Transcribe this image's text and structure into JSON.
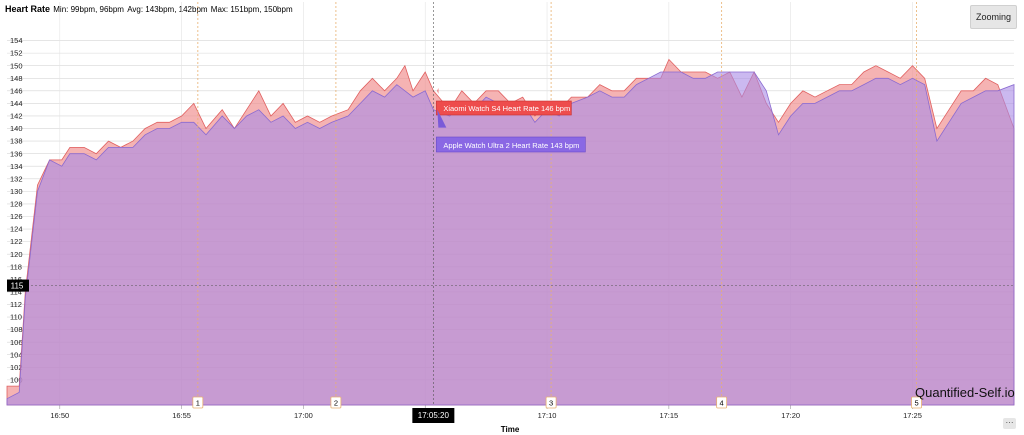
{
  "header": {
    "title": "Heart Rate",
    "min": "Min: 99bpm, 96bpm",
    "avg": "Avg: 143bpm, 142bpm",
    "max": "Max: 151bpm, 150bpm"
  },
  "toolbar": {
    "zoom_label": "Zooming",
    "more_label": "···"
  },
  "brand": "Quantified-Self.io",
  "crosshair": {
    "y_label": "115",
    "x_label": "17:05:20"
  },
  "tooltips": {
    "xiaomi": "Xiaomi Watch S4 Heart Rate 146 bpm",
    "apple": "Apple Watch Ultra 2 Heart Rate 143 bpm"
  },
  "colors": {
    "xiaomi": "#f08a8a",
    "apple": "#a88ae6",
    "overlap": "#d898c8"
  },
  "chart_data": {
    "type": "area",
    "xlabel": "Time",
    "ylabel": "",
    "ylim": [
      96,
      156
    ],
    "y_ticks": [
      100,
      102,
      104,
      106,
      108,
      110,
      112,
      114,
      116,
      118,
      120,
      122,
      124,
      126,
      128,
      130,
      132,
      134,
      136,
      138,
      140,
      142,
      144,
      146,
      148,
      150,
      152,
      154
    ],
    "x_ticks": [
      "16:50",
      "16:55",
      "17:00",
      "17:05",
      "17:10",
      "17:15",
      "17:20",
      "17:25"
    ],
    "x_range": [
      "16:47:50",
      "17:29:10"
    ],
    "markers": [
      {
        "label": "1",
        "time": "16:55:40"
      },
      {
        "label": "2",
        "time": "17:01:20"
      },
      {
        "label": "3",
        "time": "17:10:10"
      },
      {
        "label": "4",
        "time": "17:17:10"
      },
      {
        "label": "5",
        "time": "17:25:10"
      }
    ],
    "series": [
      {
        "name": "Xiaomi Watch S4 Heart Rate",
        "unit": "bpm",
        "points": [
          [
            "16:47:50",
            99
          ],
          [
            "16:48:20",
            99
          ],
          [
            "16:48:35",
            114
          ],
          [
            "16:49:05",
            131
          ],
          [
            "16:49:35",
            135
          ],
          [
            "16:50:05",
            135
          ],
          [
            "16:50:25",
            137
          ],
          [
            "16:51:00",
            137
          ],
          [
            "16:51:30",
            136
          ],
          [
            "16:52:00",
            138
          ],
          [
            "16:52:30",
            137
          ],
          [
            "16:53:00",
            138
          ],
          [
            "16:53:30",
            140
          ],
          [
            "16:54:00",
            141
          ],
          [
            "16:54:30",
            141
          ],
          [
            "16:55:00",
            142
          ],
          [
            "16:55:30",
            144
          ],
          [
            "16:56:00",
            140
          ],
          [
            "16:56:40",
            143
          ],
          [
            "16:57:10",
            140
          ],
          [
            "16:57:40",
            143
          ],
          [
            "16:58:10",
            146
          ],
          [
            "16:58:40",
            142
          ],
          [
            "16:59:10",
            144
          ],
          [
            "16:59:40",
            141
          ],
          [
            "17:00:10",
            142
          ],
          [
            "17:00:40",
            141
          ],
          [
            "17:01:10",
            142
          ],
          [
            "17:01:50",
            143
          ],
          [
            "17:02:20",
            146
          ],
          [
            "17:02:50",
            148
          ],
          [
            "17:03:20",
            146
          ],
          [
            "17:03:50",
            148
          ],
          [
            "17:04:10",
            150
          ],
          [
            "17:04:30",
            146
          ],
          [
            "17:05:00",
            149
          ],
          [
            "17:05:20",
            146
          ],
          [
            "17:06:00",
            143
          ],
          [
            "17:06:30",
            146
          ],
          [
            "17:07:00",
            144
          ],
          [
            "17:07:30",
            146
          ],
          [
            "17:08:00",
            146
          ],
          [
            "17:08:30",
            144
          ],
          [
            "17:09:00",
            145
          ],
          [
            "17:09:30",
            142
          ],
          [
            "17:10:00",
            144
          ],
          [
            "17:10:30",
            143
          ],
          [
            "17:11:00",
            145
          ],
          [
            "17:11:40",
            145
          ],
          [
            "17:12:10",
            147
          ],
          [
            "17:12:40",
            146
          ],
          [
            "17:13:10",
            146
          ],
          [
            "17:13:40",
            148
          ],
          [
            "17:14:10",
            148
          ],
          [
            "17:14:40",
            148
          ],
          [
            "17:15:00",
            151
          ],
          [
            "17:15:30",
            149
          ],
          [
            "17:16:00",
            149
          ],
          [
            "17:16:30",
            149
          ],
          [
            "17:17:00",
            148
          ],
          [
            "17:17:30",
            149
          ],
          [
            "17:18:00",
            145
          ],
          [
            "17:18:30",
            149
          ],
          [
            "17:19:00",
            144
          ],
          [
            "17:19:30",
            141
          ],
          [
            "17:20:00",
            144
          ],
          [
            "17:20:30",
            146
          ],
          [
            "17:21:00",
            145
          ],
          [
            "17:21:30",
            146
          ],
          [
            "17:22:00",
            147
          ],
          [
            "17:22:30",
            147
          ],
          [
            "17:23:00",
            149
          ],
          [
            "17:23:30",
            150
          ],
          [
            "17:24:00",
            149
          ],
          [
            "17:24:30",
            148
          ],
          [
            "17:25:00",
            150
          ],
          [
            "17:25:30",
            148
          ],
          [
            "17:26:00",
            140
          ],
          [
            "17:26:30",
            143
          ],
          [
            "17:27:00",
            146
          ],
          [
            "17:27:30",
            146
          ],
          [
            "17:28:00",
            148
          ],
          [
            "17:28:30",
            147
          ],
          [
            "17:29:10",
            140
          ]
        ]
      },
      {
        "name": "Apple Watch Ultra 2 Heart Rate",
        "unit": "bpm",
        "points": [
          [
            "16:47:50",
            97
          ],
          [
            "16:48:20",
            98
          ],
          [
            "16:48:35",
            113
          ],
          [
            "16:49:05",
            130
          ],
          [
            "16:49:35",
            135
          ],
          [
            "16:50:05",
            134
          ],
          [
            "16:50:25",
            136
          ],
          [
            "16:51:00",
            136
          ],
          [
            "16:51:30",
            135
          ],
          [
            "16:52:00",
            137
          ],
          [
            "16:52:30",
            137
          ],
          [
            "16:53:00",
            137
          ],
          [
            "16:53:30",
            139
          ],
          [
            "16:54:00",
            140
          ],
          [
            "16:54:30",
            140
          ],
          [
            "16:55:00",
            141
          ],
          [
            "16:55:30",
            141
          ],
          [
            "16:56:00",
            139
          ],
          [
            "16:56:40",
            142
          ],
          [
            "16:57:10",
            140
          ],
          [
            "16:57:40",
            142
          ],
          [
            "16:58:10",
            143
          ],
          [
            "16:58:40",
            141
          ],
          [
            "16:59:10",
            142
          ],
          [
            "16:59:40",
            140
          ],
          [
            "17:00:10",
            141
          ],
          [
            "17:00:40",
            140
          ],
          [
            "17:01:10",
            141
          ],
          [
            "17:01:50",
            142
          ],
          [
            "17:02:20",
            144
          ],
          [
            "17:02:50",
            146
          ],
          [
            "17:03:20",
            145
          ],
          [
            "17:03:50",
            147
          ],
          [
            "17:04:10",
            146
          ],
          [
            "17:04:30",
            145
          ],
          [
            "17:05:00",
            146
          ],
          [
            "17:05:20",
            143
          ],
          [
            "17:06:00",
            142
          ],
          [
            "17:06:30",
            144
          ],
          [
            "17:07:00",
            143
          ],
          [
            "17:07:30",
            145
          ],
          [
            "17:08:00",
            144
          ],
          [
            "17:08:30",
            143
          ],
          [
            "17:09:00",
            144
          ],
          [
            "17:09:30",
            141
          ],
          [
            "17:10:00",
            143
          ],
          [
            "17:10:30",
            142
          ],
          [
            "17:11:00",
            144
          ],
          [
            "17:11:40",
            145
          ],
          [
            "17:12:10",
            146
          ],
          [
            "17:12:40",
            145
          ],
          [
            "17:13:10",
            145
          ],
          [
            "17:13:40",
            147
          ],
          [
            "17:14:10",
            148
          ],
          [
            "17:14:40",
            149
          ],
          [
            "17:15:00",
            149
          ],
          [
            "17:15:30",
            149
          ],
          [
            "17:16:00",
            148
          ],
          [
            "17:16:30",
            148
          ],
          [
            "17:17:00",
            149
          ],
          [
            "17:17:30",
            149
          ],
          [
            "17:18:00",
            149
          ],
          [
            "17:18:30",
            149
          ],
          [
            "17:19:00",
            146
          ],
          [
            "17:19:30",
            139
          ],
          [
            "17:20:00",
            142
          ],
          [
            "17:20:30",
            144
          ],
          [
            "17:21:00",
            144
          ],
          [
            "17:21:30",
            145
          ],
          [
            "17:22:00",
            146
          ],
          [
            "17:22:30",
            146
          ],
          [
            "17:23:00",
            147
          ],
          [
            "17:23:30",
            148
          ],
          [
            "17:24:00",
            148
          ],
          [
            "17:24:30",
            147
          ],
          [
            "17:25:00",
            148
          ],
          [
            "17:25:30",
            147
          ],
          [
            "17:26:00",
            138
          ],
          [
            "17:26:30",
            141
          ],
          [
            "17:27:00",
            144
          ],
          [
            "17:27:30",
            145
          ],
          [
            "17:28:00",
            146
          ],
          [
            "17:28:30",
            146
          ],
          [
            "17:29:10",
            147
          ]
        ]
      }
    ]
  }
}
